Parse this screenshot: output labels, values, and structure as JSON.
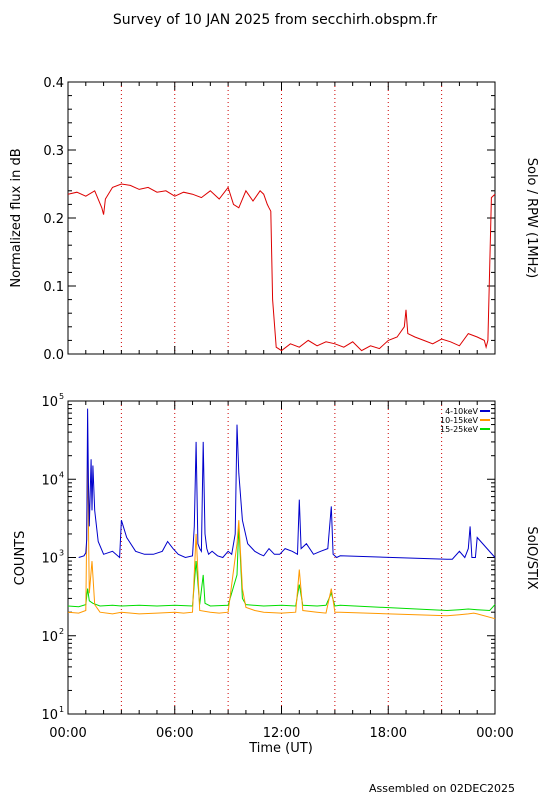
{
  "page_title": "Survey of 10 JAN 2025 from secchirh.obspm.fr",
  "footer": "Assembled on 02DEC2025",
  "colors": {
    "rpw": "#dd0000",
    "band_4_10": "#0000cc",
    "band_10_15": "#ff9900",
    "band_15_25": "#00dd00",
    "guide": "#cc0000"
  },
  "x_axis": {
    "label": "Time (UT)",
    "ticks": [
      "00:00",
      "06:00",
      "12:00",
      "18:00",
      "00:00"
    ],
    "tick_hours": [
      0,
      6,
      12,
      18,
      24
    ],
    "xlim": [
      0,
      24
    ],
    "dotted_guides_hours": [
      3,
      6,
      9,
      12,
      15,
      18,
      21
    ]
  },
  "chart_data": [
    {
      "type": "line",
      "title": "",
      "right_label": "Solo / RPW (1MHz)",
      "ylabel": "Normalized flux in dB",
      "ylim": [
        0,
        0.4
      ],
      "y_ticks": [
        0.0,
        0.1,
        0.2,
        0.3,
        0.4
      ],
      "y_tick_labels": [
        "0.0",
        "0.1",
        "0.2",
        "0.3",
        "0.4"
      ],
      "grid": false,
      "series": [
        {
          "x": [
            0,
            0.5,
            1.0,
            1.5,
            1.9,
            2.0,
            2.1,
            2.5,
            3.0,
            3.5,
            4.0,
            4.5,
            5.0,
            5.5,
            6.0,
            6.5,
            7.0,
            7.5,
            8.0,
            8.5,
            9.0,
            9.3,
            9.6,
            10.0,
            10.4,
            10.8,
            11.0,
            11.2,
            11.3,
            11.4,
            11.5,
            11.7,
            12.0,
            12.5,
            13.0,
            13.5,
            14.0,
            14.5,
            15.0,
            15.5,
            16.0,
            16.5,
            17.0,
            17.5,
            18.0,
            18.5,
            18.9,
            19.0,
            19.1,
            19.5,
            20.0,
            20.5,
            21.0,
            21.5,
            22.0,
            22.5,
            23.0,
            23.4,
            23.5,
            23.6,
            23.8,
            24.0
          ],
          "y": [
            0.235,
            0.238,
            0.232,
            0.24,
            0.215,
            0.205,
            0.228,
            0.245,
            0.25,
            0.248,
            0.242,
            0.245,
            0.238,
            0.24,
            0.232,
            0.238,
            0.235,
            0.23,
            0.24,
            0.228,
            0.245,
            0.22,
            0.215,
            0.24,
            0.225,
            0.24,
            0.235,
            0.22,
            0.215,
            0.21,
            0.08,
            0.01,
            0.005,
            0.015,
            0.01,
            0.02,
            0.012,
            0.018,
            0.015,
            0.01,
            0.018,
            0.005,
            0.012,
            0.008,
            0.02,
            0.025,
            0.04,
            0.065,
            0.03,
            0.025,
            0.02,
            0.015,
            0.022,
            0.018,
            0.012,
            0.03,
            0.025,
            0.02,
            0.01,
            0.02,
            0.23,
            0.235
          ]
        }
      ]
    },
    {
      "type": "line",
      "title": "",
      "right_label": "SolO/STIX",
      "ylabel": "COUNTS",
      "y_scale": "log",
      "ylim": [
        10,
        100000
      ],
      "y_ticks": [
        10,
        100,
        1000,
        10000,
        100000
      ],
      "y_tick_labels": [
        {
          "base": "10",
          "exp": "1"
        },
        {
          "base": "10",
          "exp": "2"
        },
        {
          "base": "10",
          "exp": "3"
        },
        {
          "base": "10",
          "exp": "4"
        },
        {
          "base": "10",
          "exp": "5"
        }
      ],
      "legend_position": "top-right",
      "grid": false,
      "series": [
        {
          "name": "4-10keV",
          "x": [
            0.6,
            0.9,
            1.0,
            1.05,
            1.1,
            1.15,
            1.2,
            1.3,
            1.35,
            1.4,
            1.5,
            1.7,
            2.0,
            2.5,
            2.9,
            3.0,
            3.3,
            3.8,
            4.3,
            4.8,
            5.3,
            5.6,
            5.9,
            6.2,
            6.6,
            7.0,
            7.1,
            7.2,
            7.3,
            7.4,
            7.5,
            7.6,
            7.7,
            7.8,
            7.9,
            8.1,
            8.4,
            8.7,
            9.0,
            9.2,
            9.4,
            9.5,
            9.6,
            9.8,
            10.1,
            10.5,
            10.8,
            11.0,
            11.3,
            11.6,
            11.9,
            12.2,
            12.6,
            12.9,
            13.0,
            13.1,
            13.4,
            13.8,
            14.2,
            14.6,
            14.8,
            14.9,
            15.1,
            15.3,
            21.3,
            21.6,
            22.0,
            22.3,
            22.5,
            22.6,
            22.7,
            22.9,
            23.0,
            24.0
          ],
          "y": [
            1000,
            1050,
            1150,
            1700,
            80000,
            8000,
            2500,
            18000,
            4000,
            15000,
            4000,
            1600,
            1100,
            1200,
            1000,
            3000,
            1800,
            1200,
            1100,
            1100,
            1200,
            1600,
            1300,
            1100,
            1000,
            1050,
            2500,
            30000,
            1500,
            1300,
            1200,
            30000,
            2000,
            1300,
            1100,
            1200,
            1050,
            1000,
            1200,
            1100,
            2000,
            50000,
            12000,
            3000,
            1500,
            1200,
            1100,
            1050,
            1300,
            1100,
            1100,
            1300,
            1200,
            1100,
            5500,
            1300,
            1500,
            1100,
            1200,
            1300,
            4500,
            1100,
            1000,
            1050,
            950,
            950,
            1200,
            1000,
            1300,
            2500,
            1000,
            1000,
            1800,
            1000
          ]
        },
        {
          "name": "10-15keV",
          "x": [
            0.0,
            0.6,
            1.0,
            1.1,
            1.2,
            1.35,
            1.5,
            1.8,
            2.5,
            3.0,
            4.0,
            5.0,
            6.0,
            6.5,
            7.0,
            7.2,
            7.4,
            8.0,
            8.5,
            9.0,
            9.5,
            9.6,
            9.8,
            10.0,
            10.5,
            11.0,
            12.0,
            12.8,
            13.0,
            13.2,
            14.0,
            14.5,
            14.8,
            15.0,
            15.3,
            21.3,
            22.0,
            22.5,
            22.8,
            23.0,
            24.0
          ],
          "y": [
            200,
            195,
            210,
            20000,
            350,
            900,
            250,
            200,
            190,
            200,
            190,
            195,
            200,
            195,
            200,
            2000,
            210,
            200,
            195,
            200,
            1500,
            3000,
            400,
            230,
            210,
            200,
            195,
            200,
            700,
            210,
            200,
            195,
            400,
            200,
            200,
            180,
            185,
            190,
            195,
            190,
            165
          ]
        },
        {
          "name": "15-25keV",
          "x": [
            0.0,
            0.6,
            1.0,
            1.1,
            1.2,
            1.4,
            1.8,
            2.5,
            3.0,
            4.0,
            5.0,
            6.0,
            7.0,
            7.2,
            7.4,
            7.6,
            7.7,
            8.0,
            9.0,
            9.5,
            9.6,
            9.8,
            10.0,
            11.0,
            12.0,
            12.8,
            13.0,
            13.2,
            14.0,
            14.5,
            14.8,
            15.0,
            15.3,
            21.3,
            22.0,
            22.5,
            23.0,
            23.7,
            24.0
          ],
          "y": [
            240,
            235,
            250,
            400,
            280,
            260,
            240,
            245,
            240,
            245,
            240,
            245,
            240,
            900,
            250,
            600,
            260,
            240,
            245,
            600,
            2500,
            300,
            250,
            240,
            245,
            240,
            450,
            245,
            240,
            245,
            350,
            240,
            245,
            210,
            215,
            220,
            215,
            210,
            250
          ]
        }
      ]
    }
  ]
}
